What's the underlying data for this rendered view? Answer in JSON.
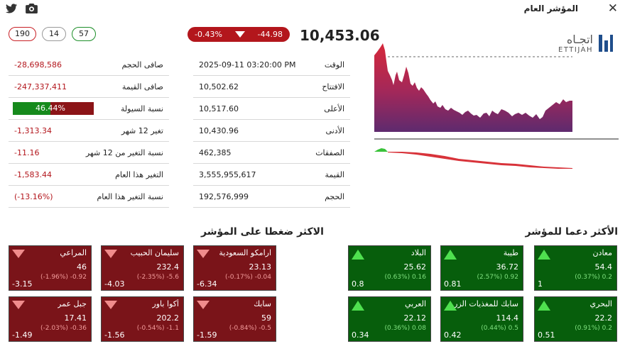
{
  "window": {
    "title": "المؤشر العام",
    "close_icon": "close-icon",
    "share_icons": [
      "twitter-icon",
      "camera-icon"
    ]
  },
  "breadth": {
    "down": "190",
    "unchanged": "14",
    "up": "57"
  },
  "index": {
    "value": "10,453.06",
    "change": "-44.98",
    "change_pct": "-0.43%"
  },
  "stats_left": [
    {
      "label": "صافى الحجم",
      "value": "-28,698,586"
    },
    {
      "label": "صافى القيمة",
      "value": "-247,337,411"
    },
    {
      "label": "نسبة السيولة",
      "value": "46.44%",
      "fraction": 0.4644
    },
    {
      "label": "تغير 12 شهر",
      "value": "-1,313.34"
    },
    {
      "label": "نسبة التغير من 12 شهر",
      "value": "-11.16"
    },
    {
      "label": "التغير هذا العام",
      "value": "-1,583.44"
    },
    {
      "label": "نسبة التغير هذا العام",
      "value": "(-13.16%)"
    }
  ],
  "stats_mid": [
    {
      "label": "الوقت",
      "value": "2025-09-11  03:20:00 PM"
    },
    {
      "label": "الافتتاح",
      "value": "10,502.62"
    },
    {
      "label": "الأعلى",
      "value": "10,517.60"
    },
    {
      "label": "الأدنى",
      "value": "10,430.96"
    },
    {
      "label": "الصفقات",
      "value": "462,385"
    },
    {
      "label": "القيمة",
      "value": "3,555,955,617"
    },
    {
      "label": "الحجم",
      "value": "192,576,999"
    }
  ],
  "logo": {
    "ar": "اتجـاه",
    "en": "ETTIJAH"
  },
  "colors": {
    "up": "#075e0c",
    "down": "#7a1419",
    "accent_red": "#b3161c",
    "accent_green": "#168a1c"
  },
  "supporters": {
    "title": "الأكثر دعما للمؤشر",
    "cards": [
      {
        "name": "معادن",
        "price": "54.4",
        "chg": "(0.37%) 0.2",
        "vol": "1"
      },
      {
        "name": "طيبة",
        "price": "36.72",
        "chg": "(2.57%) 0.92",
        "vol": "0.81"
      },
      {
        "name": "البلاد",
        "price": "25.62",
        "chg": "(0.63%) 0.16",
        "vol": "0.8"
      },
      {
        "name": "البحري",
        "price": "22.2",
        "chg": "(0.91%) 0.2",
        "vol": "0.51"
      },
      {
        "name": "سابك للمغذيات الزراعية",
        "price": "114.4",
        "chg": "(0.44%) 0.5",
        "vol": "0.42"
      },
      {
        "name": "العربي",
        "price": "22.12",
        "chg": "(0.36%) 0.08",
        "vol": "0.34"
      }
    ]
  },
  "pressers": {
    "title": "الاكثر ضغطا على المؤشر",
    "cards": [
      {
        "name": "ارامكو السعودية",
        "price": "23.13",
        "chg": "(-0.17%) -0.04",
        "vol": "-6.34"
      },
      {
        "name": "سليمان الحبيب",
        "price": "232.4",
        "chg": "(-2.35%) -5.6",
        "vol": "-4.03"
      },
      {
        "name": "المراعي",
        "price": "46",
        "chg": "(-1.96%) -0.92",
        "vol": "-3.15"
      },
      {
        "name": "سابك",
        "price": "59",
        "chg": "(-0.84%) -0.5",
        "vol": "-1.59"
      },
      {
        "name": "أكوا باور",
        "price": "202.2",
        "chg": "(-0.54%) -1.1",
        "vol": "-1.56"
      },
      {
        "name": "جبل عمر",
        "price": "17.41",
        "chg": "(-2.03%) -0.36",
        "vol": "-1.49"
      }
    ]
  }
}
